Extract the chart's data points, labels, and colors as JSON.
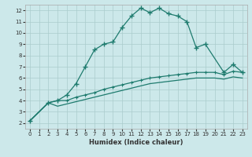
{
  "title": "",
  "xlabel": "Humidex (Indice chaleur)",
  "bg_color": "#cce8ea",
  "grid_color": "#aacccc",
  "line_color": "#1e7b6e",
  "xlim": [
    -0.5,
    23.5
  ],
  "ylim": [
    1.5,
    12.5
  ],
  "yticks": [
    2,
    3,
    4,
    5,
    6,
    7,
    8,
    9,
    10,
    11,
    12
  ],
  "xticks": [
    0,
    1,
    2,
    3,
    4,
    5,
    6,
    7,
    8,
    9,
    10,
    11,
    12,
    13,
    14,
    15,
    16,
    17,
    18,
    19,
    20,
    21,
    22,
    23
  ],
  "series1_x": [
    0,
    2,
    3,
    4,
    5,
    6,
    7,
    8,
    9,
    10,
    11,
    12,
    13,
    14,
    15,
    16,
    17,
    18,
    19,
    21,
    22,
    23
  ],
  "series1_y": [
    2.2,
    3.8,
    4.0,
    4.5,
    5.5,
    7.0,
    8.5,
    9.0,
    9.2,
    10.5,
    11.5,
    12.2,
    11.8,
    12.2,
    11.7,
    11.5,
    11.0,
    8.7,
    9.0,
    6.5,
    7.2,
    6.5
  ],
  "series2_x": [
    0,
    2,
    3,
    4,
    5,
    6,
    7,
    8,
    9,
    10,
    11,
    12,
    13,
    14,
    15,
    16,
    17,
    18,
    19,
    20,
    21,
    22,
    23
  ],
  "series2_y": [
    2.2,
    3.8,
    4.0,
    4.0,
    4.3,
    4.5,
    4.7,
    5.0,
    5.2,
    5.4,
    5.6,
    5.8,
    6.0,
    6.1,
    6.2,
    6.3,
    6.4,
    6.5,
    6.5,
    6.5,
    6.3,
    6.6,
    6.5
  ],
  "series3_x": [
    0,
    2,
    3,
    4,
    5,
    6,
    7,
    8,
    9,
    10,
    11,
    12,
    13,
    14,
    15,
    16,
    17,
    18,
    19,
    20,
    21,
    22,
    23
  ],
  "series3_y": [
    2.2,
    3.8,
    3.5,
    3.7,
    3.9,
    4.1,
    4.3,
    4.5,
    4.7,
    4.9,
    5.1,
    5.3,
    5.5,
    5.6,
    5.7,
    5.8,
    5.9,
    6.0,
    6.0,
    6.0,
    5.9,
    6.1,
    6.0
  ],
  "series1_marker": "+",
  "series2_marker": "+"
}
